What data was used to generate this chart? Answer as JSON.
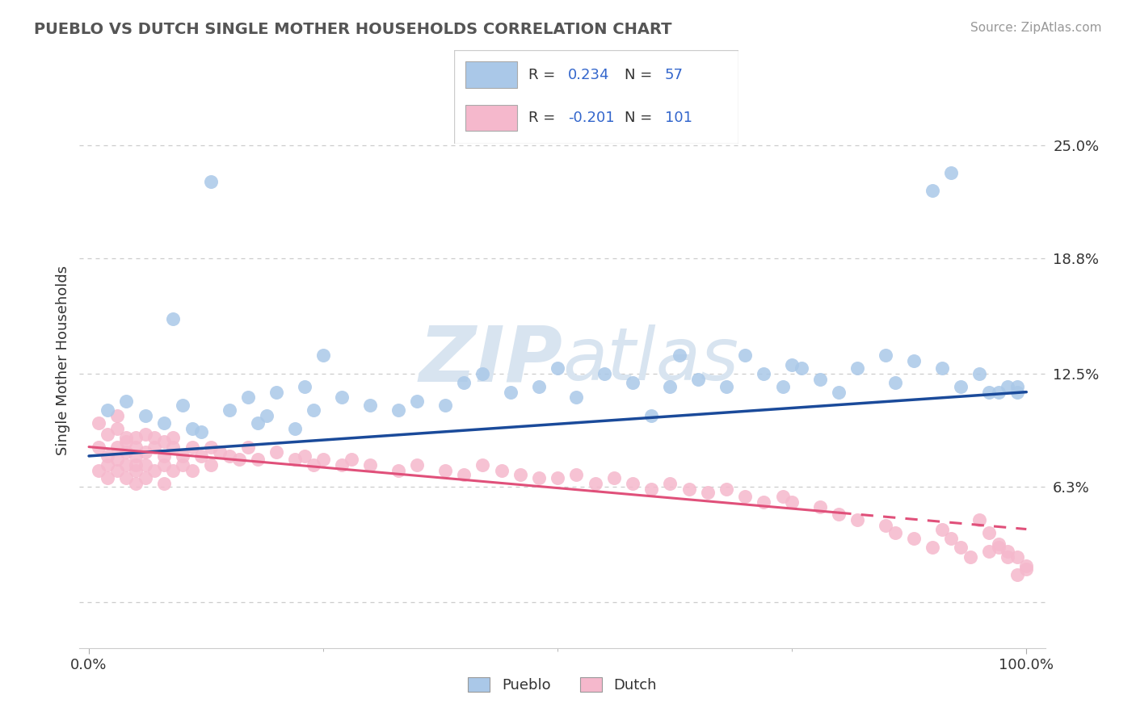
{
  "title": "PUEBLO VS DUTCH SINGLE MOTHER HOUSEHOLDS CORRELATION CHART",
  "source": "Source: ZipAtlas.com",
  "ylabel": "Single Mother Households",
  "r_pueblo": 0.234,
  "n_pueblo": 57,
  "r_dutch": -0.201,
  "n_dutch": 101,
  "color_pueblo": "#aac8e8",
  "color_dutch": "#f5b8cc",
  "line_pueblo": "#1a4a9a",
  "line_dutch": "#e0507a",
  "text_color_num": "#3366cc",
  "text_color_label": "#333333",
  "background_color": "#ffffff",
  "watermark_color": "#d8e4f0",
  "yticks": [
    0.0,
    6.3,
    12.5,
    18.8,
    25.0
  ],
  "ytick_labels": [
    "",
    "6.3%",
    "12.5%",
    "18.8%",
    "25.0%"
  ],
  "xtick_labels": [
    "0.0%",
    "100.0%"
  ],
  "legend_pueblo": "Pueblo",
  "legend_dutch": "Dutch",
  "pueblo_x": [
    2,
    4,
    6,
    8,
    9,
    10,
    11,
    12,
    13,
    15,
    17,
    18,
    19,
    20,
    22,
    23,
    24,
    25,
    27,
    30,
    33,
    35,
    38,
    40,
    42,
    45,
    48,
    50,
    52,
    55,
    58,
    60,
    62,
    63,
    65,
    68,
    70,
    72,
    74,
    75,
    76,
    78,
    80,
    82,
    85,
    86,
    88,
    90,
    91,
    92,
    93,
    95,
    96,
    97,
    98,
    99,
    99
  ],
  "pueblo_y": [
    10.5,
    11.0,
    10.2,
    9.8,
    15.5,
    10.8,
    9.5,
    9.3,
    23.0,
    10.5,
    11.2,
    9.8,
    10.2,
    11.5,
    9.5,
    11.8,
    10.5,
    13.5,
    11.2,
    10.8,
    10.5,
    11.0,
    10.8,
    12.0,
    12.5,
    11.5,
    11.8,
    12.8,
    11.2,
    12.5,
    12.0,
    10.2,
    11.8,
    13.5,
    12.2,
    11.8,
    13.5,
    12.5,
    11.8,
    13.0,
    12.8,
    12.2,
    11.5,
    12.8,
    13.5,
    12.0,
    13.2,
    22.5,
    12.8,
    23.5,
    11.8,
    12.5,
    11.5,
    11.5,
    11.8,
    11.5,
    11.8
  ],
  "dutch_x": [
    1,
    1,
    1,
    2,
    2,
    2,
    2,
    3,
    3,
    3,
    3,
    3,
    4,
    4,
    4,
    4,
    4,
    5,
    5,
    5,
    5,
    5,
    5,
    6,
    6,
    6,
    6,
    7,
    7,
    7,
    8,
    8,
    8,
    8,
    9,
    9,
    9,
    10,
    10,
    11,
    11,
    12,
    13,
    13,
    14,
    15,
    16,
    17,
    18,
    20,
    22,
    23,
    24,
    25,
    27,
    28,
    30,
    33,
    35,
    38,
    40,
    42,
    44,
    46,
    48,
    50,
    52,
    54,
    56,
    58,
    60,
    62,
    64,
    66,
    68,
    70,
    72,
    74,
    75,
    78,
    80,
    82,
    85,
    86,
    88,
    90,
    91,
    92,
    93,
    94,
    95,
    96,
    97,
    98,
    99,
    100,
    100,
    99,
    98,
    97,
    96
  ],
  "dutch_y": [
    8.5,
    7.2,
    9.8,
    8.0,
    7.5,
    9.2,
    6.8,
    8.5,
    7.8,
    9.5,
    7.2,
    10.2,
    8.2,
    7.5,
    9.0,
    6.8,
    8.8,
    8.5,
    7.2,
    9.0,
    6.5,
    8.0,
    7.5,
    8.2,
    7.5,
    9.2,
    6.8,
    8.5,
    7.2,
    9.0,
    8.0,
    7.5,
    8.8,
    6.5,
    8.5,
    7.2,
    9.0,
    8.0,
    7.5,
    8.5,
    7.2,
    8.0,
    8.5,
    7.5,
    8.2,
    8.0,
    7.8,
    8.5,
    7.8,
    8.2,
    7.8,
    8.0,
    7.5,
    7.8,
    7.5,
    7.8,
    7.5,
    7.2,
    7.5,
    7.2,
    7.0,
    7.5,
    7.2,
    7.0,
    6.8,
    6.8,
    7.0,
    6.5,
    6.8,
    6.5,
    6.2,
    6.5,
    6.2,
    6.0,
    6.2,
    5.8,
    5.5,
    5.8,
    5.5,
    5.2,
    4.8,
    4.5,
    4.2,
    3.8,
    3.5,
    3.0,
    4.0,
    3.5,
    3.0,
    2.5,
    4.5,
    3.8,
    3.2,
    2.8,
    2.5,
    2.0,
    1.8,
    1.5,
    2.5,
    3.0,
    2.8
  ]
}
